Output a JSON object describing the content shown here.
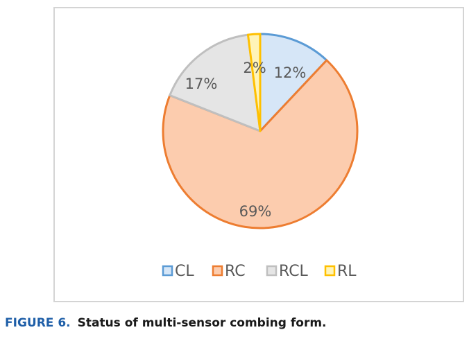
{
  "chart_data": {
    "type": "pie",
    "categories": [
      "CL",
      "RC",
      "RCL",
      "RL"
    ],
    "values": [
      12,
      69,
      17,
      2
    ],
    "data_labels": [
      "12%",
      "69%",
      "17%",
      "2%"
    ],
    "fill_colors": [
      "#d6e6f7",
      "#fcccae",
      "#e5e5e5",
      "#fff4b8"
    ],
    "stroke_colors": [
      "#5b9bd5",
      "#ed7d31",
      "#bfbfbf",
      "#ffc000"
    ],
    "legend_position": "bottom"
  },
  "caption": {
    "label": "FIGURE 6.",
    "text": "Status of multi-sensor combing form."
  }
}
